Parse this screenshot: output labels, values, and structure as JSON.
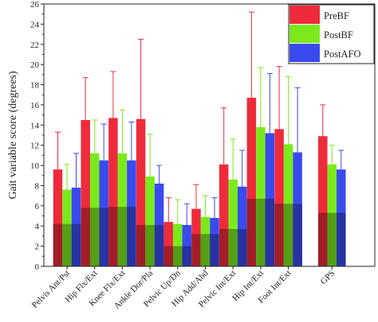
{
  "chart_data": {
    "type": "bar",
    "ylabel": "Gait variable score (degrees)",
    "ylim": [
      0,
      26
    ],
    "yticks": [
      0,
      2,
      4,
      6,
      8,
      10,
      12,
      14,
      16,
      18,
      20,
      22,
      24,
      26
    ],
    "categories": [
      "Pelvis Ant/Pst",
      "Hip Flx/Ext",
      "Knee Flx/Ext",
      "Ankle Dor/Pla",
      "Pelvic Up/Dn",
      "Hip Add/Abd",
      "Pelvic Int/Ext",
      "Hip Int/Ext",
      "Foot Int/Ext",
      "GPS"
    ],
    "series": [
      {
        "name": "PreBF",
        "color": "#ee2b3b",
        "values": [
          9.6,
          14.5,
          14.7,
          14.6,
          4.4,
          5.7,
          10.1,
          16.7,
          13.6,
          12.9
        ],
        "errors": [
          3.7,
          4.2,
          4.6,
          7.9,
          2.4,
          2.4,
          5.6,
          8.5,
          6.2,
          3.1
        ]
      },
      {
        "name": "PostBF",
        "color": "#7bea1c",
        "values": [
          7.6,
          11.2,
          11.2,
          8.9,
          4.2,
          4.9,
          8.6,
          13.8,
          12.1,
          10.1
        ],
        "errors": [
          2.5,
          3.3,
          4.3,
          4.2,
          2.4,
          2.1,
          4.0,
          5.9,
          6.7,
          1.9
        ]
      },
      {
        "name": "PostAFO",
        "color": "#3a4bee",
        "values": [
          7.8,
          10.5,
          10.5,
          8.2,
          4.1,
          4.8,
          7.9,
          13.2,
          11.3,
          9.6
        ],
        "errors": [
          3.4,
          3.6,
          3.8,
          1.8,
          2.1,
          2.0,
          3.6,
          5.9,
          6.4,
          1.9
        ]
      }
    ],
    "inner_values": [
      4.2,
      5.8,
      5.9,
      4.1,
      2.0,
      3.2,
      3.7,
      6.7,
      6.2,
      5.3
    ],
    "legend": {
      "position": "top-right",
      "entries": [
        "PreBF",
        "PostBF",
        "PostAFO"
      ]
    },
    "grid": false
  }
}
